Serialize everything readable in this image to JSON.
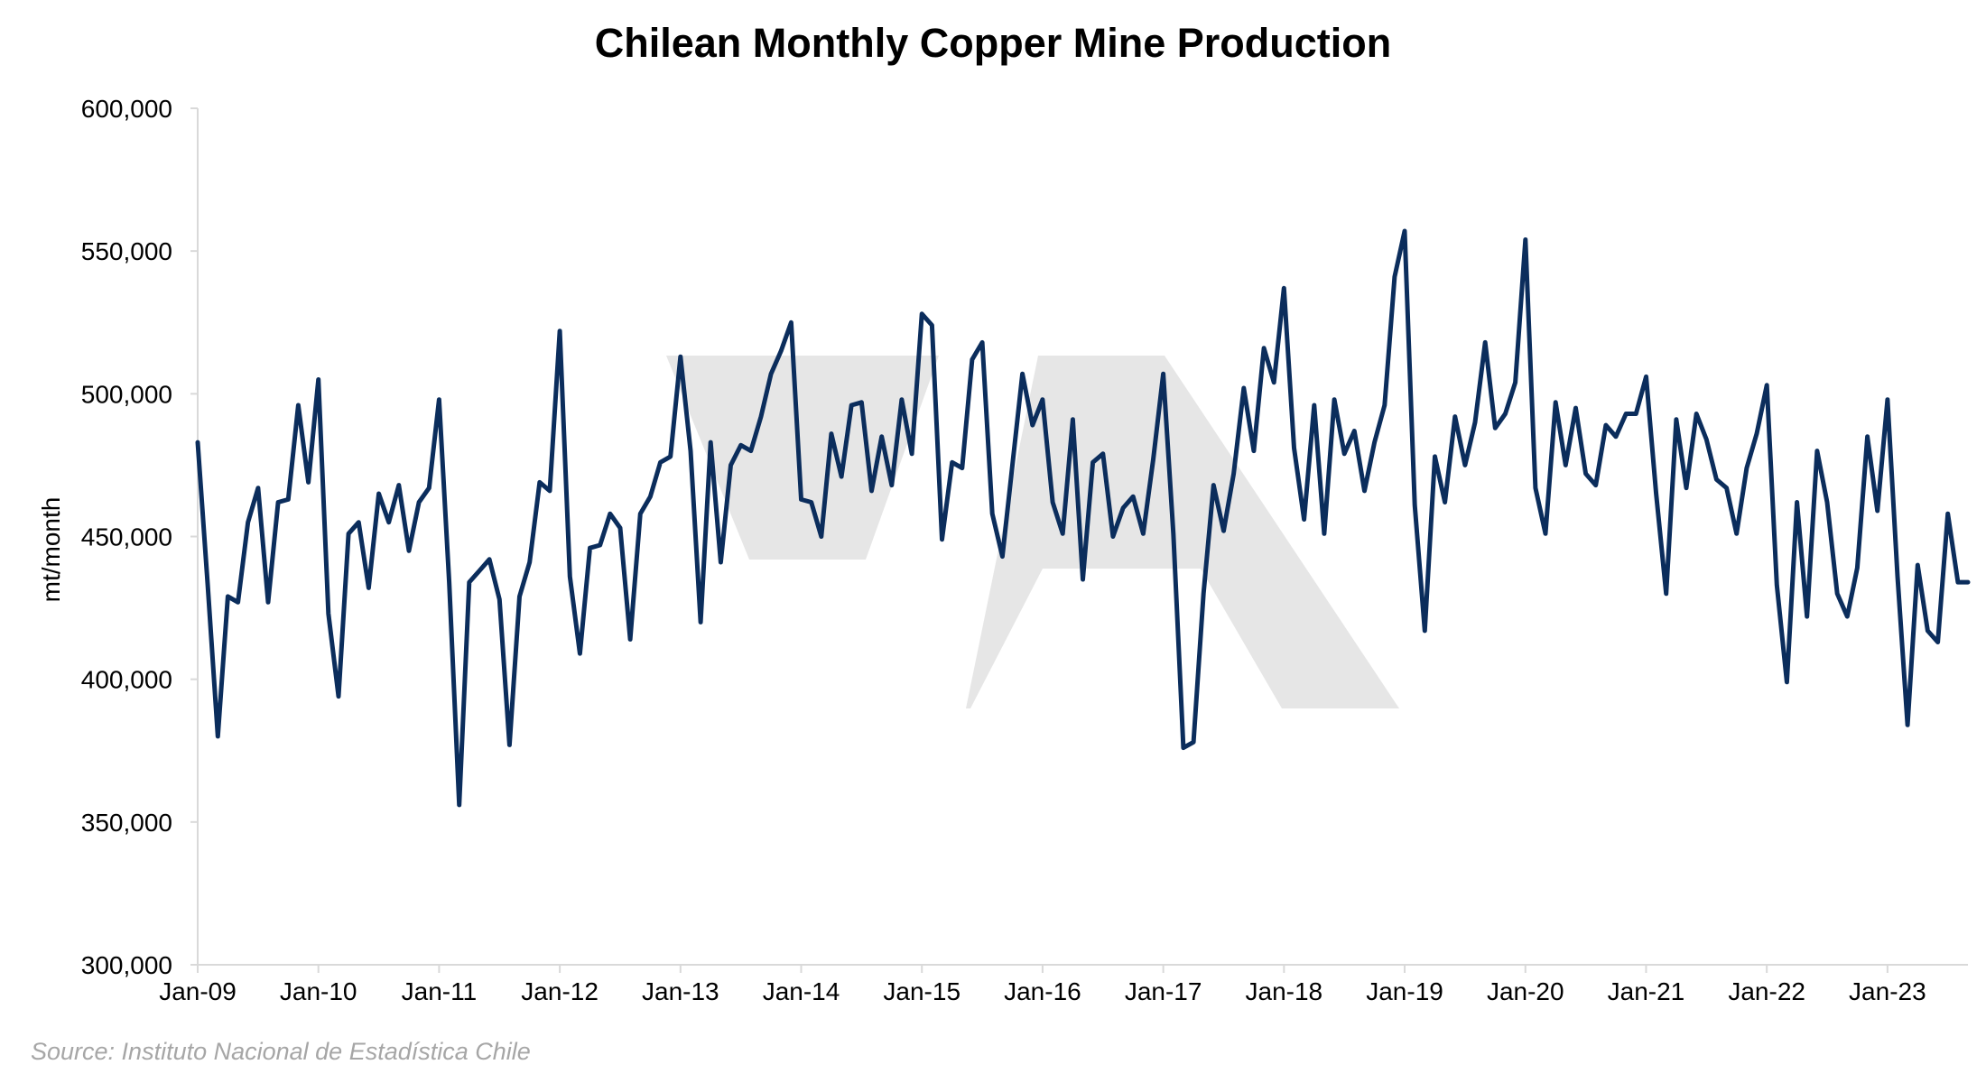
{
  "chart_data": {
    "type": "line",
    "title": "Chilean Monthly Copper Mine Production",
    "ylabel": "mt/month",
    "xlabel": "",
    "ylim": [
      300000,
      600000
    ],
    "y_ticks": [
      300000,
      350000,
      400000,
      450000,
      500000,
      550000,
      600000
    ],
    "y_tick_labels": [
      "300,000",
      "350,000",
      "400,000",
      "450,000",
      "500,000",
      "550,000",
      "600,000"
    ],
    "x_tick_labels": [
      "Jan-09",
      "Jan-10",
      "Jan-11",
      "Jan-12",
      "Jan-13",
      "Jan-14",
      "Jan-15",
      "Jan-16",
      "Jan-17",
      "Jan-18",
      "Jan-19",
      "Jan-20",
      "Jan-21",
      "Jan-22",
      "Jan-23"
    ],
    "x_tick_dates": [
      "2009-01",
      "2010-01",
      "2011-01",
      "2012-01",
      "2013-01",
      "2014-01",
      "2015-01",
      "2016-01",
      "2017-01",
      "2018-01",
      "2019-01",
      "2020-01",
      "2021-01",
      "2022-01",
      "2023-01"
    ],
    "x_range": [
      "2009-01",
      "2023-09"
    ],
    "grid": false,
    "legend": "none",
    "line_color": "#0b2d5c",
    "series": [
      {
        "x": [
          "2009-01",
          "2009-02",
          "2009-03",
          "2009-04",
          "2009-05",
          "2009-06",
          "2009-07",
          "2009-08",
          "2009-09",
          "2009-10",
          "2009-11",
          "2009-12",
          "2010-01",
          "2010-02",
          "2010-03",
          "2010-04",
          "2010-05",
          "2010-06",
          "2010-07",
          "2010-08",
          "2010-09",
          "2010-10",
          "2010-11",
          "2010-12",
          "2011-01",
          "2011-02",
          "2011-03",
          "2011-04",
          "2011-05",
          "2011-06",
          "2011-07",
          "2011-08",
          "2011-09",
          "2011-10",
          "2011-11",
          "2011-12",
          "2012-01",
          "2012-02",
          "2012-03",
          "2012-04",
          "2012-05",
          "2012-06",
          "2012-07",
          "2012-08",
          "2012-09",
          "2012-10",
          "2012-11",
          "2012-12",
          "2013-01",
          "2013-02",
          "2013-03",
          "2013-04",
          "2013-05",
          "2013-06",
          "2013-07",
          "2013-08",
          "2013-09",
          "2013-10",
          "2013-11",
          "2013-12",
          "2014-01",
          "2014-02",
          "2014-03",
          "2014-04",
          "2014-05",
          "2014-06",
          "2014-07",
          "2014-08",
          "2014-09",
          "2014-10",
          "2014-11",
          "2014-12",
          "2015-01",
          "2015-02",
          "2015-03",
          "2015-04",
          "2015-05",
          "2015-06",
          "2015-07",
          "2015-08",
          "2015-09",
          "2015-10",
          "2015-11",
          "2015-12",
          "2016-01",
          "2016-02",
          "2016-03",
          "2016-04",
          "2016-05",
          "2016-06",
          "2016-07",
          "2016-08",
          "2016-09",
          "2016-10",
          "2016-11",
          "2016-12",
          "2017-01",
          "2017-02",
          "2017-03",
          "2017-04",
          "2017-05",
          "2017-06",
          "2017-07",
          "2017-08",
          "2017-09",
          "2017-10",
          "2017-11",
          "2017-12",
          "2018-01",
          "2018-02",
          "2018-03",
          "2018-04",
          "2018-05",
          "2018-06",
          "2018-07",
          "2018-08",
          "2018-09",
          "2018-10",
          "2018-11",
          "2018-12",
          "2019-01",
          "2019-02",
          "2019-03",
          "2019-04",
          "2019-05",
          "2019-06",
          "2019-07",
          "2019-08",
          "2019-09",
          "2019-10",
          "2019-11",
          "2019-12",
          "2020-01",
          "2020-02",
          "2020-03",
          "2020-04",
          "2020-05",
          "2020-06",
          "2020-07",
          "2020-08",
          "2020-09",
          "2020-10",
          "2020-11",
          "2020-12",
          "2021-01",
          "2021-02",
          "2021-03",
          "2021-04",
          "2021-05",
          "2021-06",
          "2021-07",
          "2021-08",
          "2021-09",
          "2021-10",
          "2021-11",
          "2021-12",
          "2022-01",
          "2022-02",
          "2022-03",
          "2022-04",
          "2022-05",
          "2022-06",
          "2022-07",
          "2022-08",
          "2022-09",
          "2022-10",
          "2022-11",
          "2022-12",
          "2023-01",
          "2023-02",
          "2023-03",
          "2023-04",
          "2023-05",
          "2023-06",
          "2023-07",
          "2023-08",
          "2023-09"
        ],
        "values": [
          483000,
          433000,
          380000,
          429000,
          427000,
          455000,
          467000,
          427000,
          462000,
          463000,
          496000,
          469000,
          505000,
          423000,
          394000,
          451000,
          455000,
          432000,
          465000,
          455000,
          468000,
          445000,
          462000,
          467000,
          498000,
          434000,
          356000,
          434000,
          438000,
          442000,
          428000,
          377000,
          429000,
          441000,
          469000,
          466000,
          522000,
          436000,
          409000,
          446000,
          447000,
          458000,
          453000,
          414000,
          458000,
          464000,
          476000,
          478000,
          513000,
          480000,
          420000,
          483000,
          441000,
          475000,
          482000,
          480000,
          492000,
          507000,
          515000,
          525000,
          463000,
          462000,
          450000,
          486000,
          471000,
          496000,
          497000,
          466000,
          485000,
          468000,
          498000,
          479000,
          528000,
          524000,
          449000,
          476000,
          474000,
          512000,
          518000,
          458000,
          443000,
          475000,
          507000,
          489000,
          498000,
          462000,
          451000,
          491000,
          435000,
          476000,
          479000,
          450000,
          460000,
          464000,
          451000,
          477000,
          507000,
          451000,
          376000,
          378000,
          430000,
          468000,
          452000,
          472000,
          502000,
          480000,
          516000,
          504000,
          537000,
          481000,
          456000,
          496000,
          451000,
          498000,
          479000,
          487000,
          466000,
          483000,
          496000,
          541000,
          557000,
          461000,
          417000,
          478000,
          462000,
          492000,
          475000,
          490000,
          518000,
          488000,
          493000,
          504000,
          554000,
          467000,
          451000,
          497000,
          475000,
          495000,
          472000,
          468000,
          489000,
          485000,
          493000,
          493000,
          506000,
          465000,
          430000,
          491000,
          467000,
          493000,
          484000,
          470000,
          467000,
          451000,
          474000,
          486000,
          503000,
          433000,
          399000,
          462000,
          422000,
          480000,
          462000,
          430000,
          422000,
          439000,
          485000,
          459000,
          498000,
          436000,
          384000,
          440000,
          417000,
          413000,
          458000,
          434000,
          434000
        ]
      }
    ]
  },
  "source": "Source: Instituto Nacional de Estadística Chile",
  "colors": {
    "line": "#0b2d5c",
    "axis": "#d9d9d9",
    "watermark": "#e6e6e6",
    "source_text": "#a6a6a6"
  }
}
